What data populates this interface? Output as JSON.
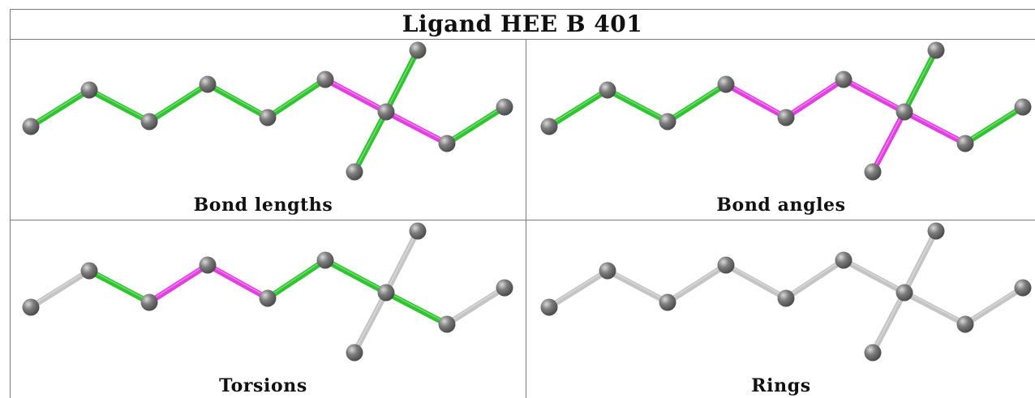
{
  "title": "Ligand HEE B 401",
  "panels": [
    {
      "id": "bond-lengths",
      "caption": "Bond lengths"
    },
    {
      "id": "bond-angles",
      "caption": "Bond angles"
    },
    {
      "id": "torsions",
      "caption": "Torsions"
    },
    {
      "id": "rings",
      "caption": "Rings"
    }
  ],
  "colors": {
    "atom": "#7d7d7d",
    "green": "#2ec52e",
    "magenta": "#e23ee2",
    "gray": "#c4c4c4"
  },
  "bond_highlights": {
    "bond-lengths": [
      "green",
      "green",
      "green",
      "green",
      "green",
      "magenta",
      "magenta",
      "green",
      "green",
      "green"
    ],
    "bond-angles": [
      "green",
      "green",
      "green",
      "magenta",
      "magenta",
      "magenta",
      "magenta",
      "green",
      "green",
      "magenta"
    ],
    "torsions": [
      "gray",
      "green",
      "magenta",
      "magenta",
      "green",
      "green",
      "green",
      "gray",
      "gray",
      "gray"
    ],
    "rings": [
      "gray",
      "gray",
      "gray",
      "gray",
      "gray",
      "gray",
      "gray",
      "gray",
      "gray",
      "gray"
    ]
  }
}
